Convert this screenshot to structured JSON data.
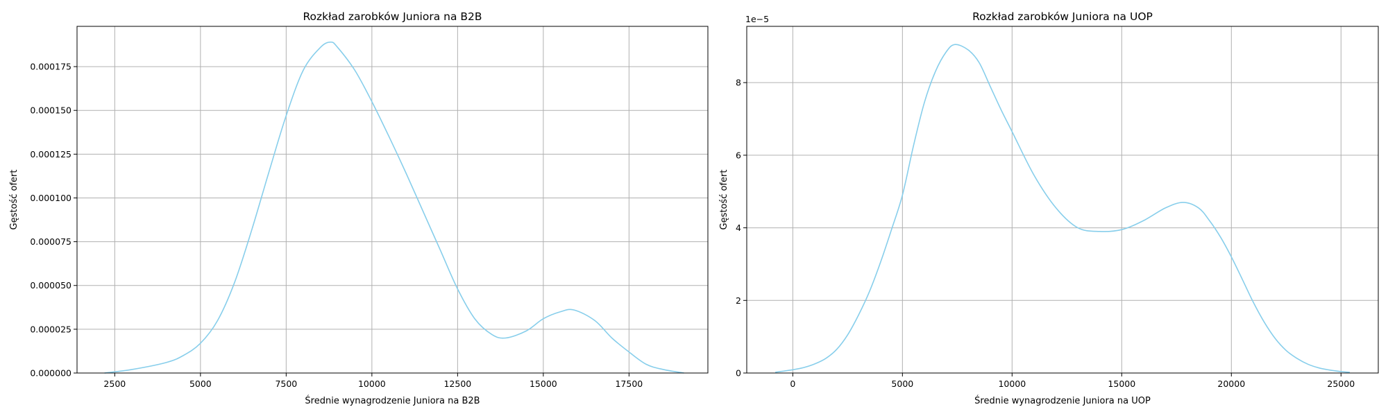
{
  "chart_data": [
    {
      "type": "line",
      "title": "Rozkład zarobków Juniora na B2B",
      "xlabel": "Średnie wynagrodzenie Juniora na B2B",
      "ylabel": "Gęstość ofert",
      "xlim": [
        1400,
        19800
      ],
      "ylim": [
        0,
        0.000198
      ],
      "xticks": [
        2500,
        5000,
        7500,
        10000,
        12500,
        15000,
        17500
      ],
      "xtick_labels": [
        "2500",
        "5000",
        "7500",
        "10000",
        "12500",
        "15000",
        "17500"
      ],
      "yticks": [
        0,
        2.5e-05,
        5e-05,
        7.5e-05,
        0.0001,
        0.000125,
        0.00015,
        0.000175
      ],
      "ytick_labels": [
        "0.000000",
        "0.000025",
        "0.000050",
        "0.000075",
        "0.000100",
        "0.000125",
        "0.000150",
        "0.000175"
      ],
      "grid": true,
      "color": "#87ceeb",
      "series": [
        {
          "x": [
            2200,
            3000,
            4000,
            4500,
            5000,
            5500,
            6000,
            6500,
            7000,
            7500,
            8000,
            8500,
            8800,
            9000,
            9500,
            10000,
            10500,
            11000,
            11500,
            12000,
            12500,
            13000,
            13500,
            13900,
            14500,
            15000,
            15500,
            15900,
            16500,
            17000,
            17500,
            18000,
            18500,
            19100
          ],
          "y": [
            0,
            2e-06,
            6e-06,
            1e-05,
            1.7e-05,
            3e-05,
            5.2e-05,
            8.2e-05,
            0.000115,
            0.000147,
            0.000173,
            0.000186,
            0.000189,
            0.000186,
            0.000173,
            0.000155,
            0.000135,
            0.000114,
            9.2e-05,
            7e-05,
            4.8e-05,
            3.1e-05,
            2.2e-05,
            2e-05,
            2.4e-05,
            3.1e-05,
            3.5e-05,
            3.6e-05,
            3e-05,
            2e-05,
            1.2e-05,
            5e-06,
            2e-06,
            0
          ]
        }
      ]
    },
    {
      "type": "line",
      "title": "Rozkład zarobków Juniora na UOP",
      "xlabel": "Średnie wynagrodzenie Juniora na UOP",
      "ylabel": "Gęstość ofert",
      "offset_text": "1e−5",
      "xlim": [
        -2100,
        26700
      ],
      "ylim": [
        0,
        9.55e-05
      ],
      "xticks": [
        0,
        5000,
        10000,
        15000,
        20000,
        25000
      ],
      "xtick_labels": [
        "0",
        "5000",
        "10000",
        "15000",
        "20000",
        "25000"
      ],
      "yticks": [
        0,
        2e-05,
        4e-05,
        6e-05,
        8e-05
      ],
      "ytick_labels": [
        "0",
        "2",
        "4",
        "6",
        "8"
      ],
      "grid": true,
      "color": "#87ceeb",
      "series": [
        {
          "x": [
            -800,
            0,
            500,
            1000,
            1500,
            2000,
            2500,
            3000,
            3500,
            4000,
            4500,
            5000,
            5500,
            6000,
            6500,
            7000,
            7400,
            8000,
            8500,
            9000,
            9500,
            10000,
            11000,
            12000,
            13000,
            14000,
            15000,
            16000,
            17000,
            17800,
            18500,
            19000,
            19500,
            20000,
            20500,
            21000,
            21500,
            22000,
            22500,
            23000,
            23500,
            24000,
            24500,
            25000,
            25400
          ],
          "y": [
            2e-07,
            9e-07,
            1.5e-06,
            2.5e-06,
            4e-06,
            6.5e-06,
            1.05e-05,
            1.6e-05,
            2.25e-05,
            3.05e-05,
            3.95e-05,
            4.9e-05,
            6.25e-05,
            7.45e-05,
            8.3e-05,
            8.85e-05,
            9.05e-05,
            8.9e-05,
            8.55e-05,
            7.9e-05,
            7.25e-05,
            6.65e-05,
            5.45e-05,
            4.55e-05,
            4e-05,
            3.9e-05,
            3.95e-05,
            4.2e-05,
            4.55e-05,
            4.7e-05,
            4.55e-05,
            4.2e-05,
            3.75e-05,
            3.2e-05,
            2.58e-05,
            1.95e-05,
            1.4e-05,
            9.5e-06,
            6.2e-06,
            4e-06,
            2.4e-06,
            1.4e-06,
            8e-07,
            4e-07,
            2e-07
          ]
        }
      ]
    }
  ]
}
